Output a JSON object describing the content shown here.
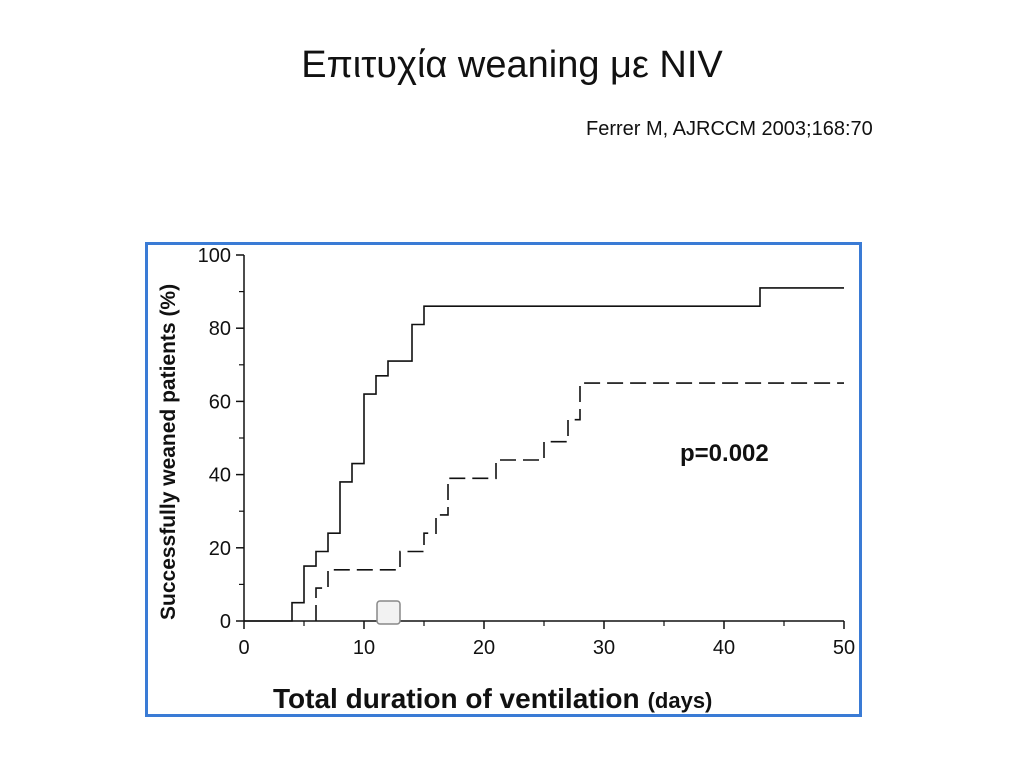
{
  "slide": {
    "title": "Επιτυχία weaning  με NIV",
    "citation": "Ferrer M, AJRCCM 2003;168:70"
  },
  "chart_data": {
    "type": "line",
    "title": "",
    "xlabel": "Total duration of ventilation",
    "xlabel_unit": "(days)",
    "ylabel": "Successfully weaned patients (%)",
    "xlim": [
      0,
      50
    ],
    "ylim": [
      0,
      100
    ],
    "x_ticks": [
      0,
      10,
      20,
      30,
      40,
      50
    ],
    "y_ticks": [
      0,
      20,
      40,
      60,
      80,
      100
    ],
    "grid": false,
    "annotation": "p=0.002",
    "series": [
      {
        "style": "solid",
        "color": "#111111",
        "points": [
          [
            0,
            0
          ],
          [
            4,
            0
          ],
          [
            4,
            5
          ],
          [
            5,
            5
          ],
          [
            5,
            15
          ],
          [
            6,
            15
          ],
          [
            6,
            19
          ],
          [
            7,
            19
          ],
          [
            7,
            24
          ],
          [
            8,
            24
          ],
          [
            8,
            38
          ],
          [
            9,
            38
          ],
          [
            9,
            43
          ],
          [
            10,
            43
          ],
          [
            10,
            62
          ],
          [
            11,
            62
          ],
          [
            11,
            67
          ],
          [
            12,
            67
          ],
          [
            12,
            71
          ],
          [
            14,
            71
          ],
          [
            14,
            81
          ],
          [
            15,
            81
          ],
          [
            15,
            86
          ],
          [
            43,
            86
          ],
          [
            43,
            91
          ],
          [
            50,
            91
          ]
        ]
      },
      {
        "style": "dashed",
        "color": "#111111",
        "points": [
          [
            6,
            0
          ],
          [
            6,
            9
          ],
          [
            7,
            9
          ],
          [
            7,
            14
          ],
          [
            13,
            14
          ],
          [
            13,
            19
          ],
          [
            15,
            19
          ],
          [
            15,
            24
          ],
          [
            16,
            24
          ],
          [
            16,
            29
          ],
          [
            17,
            29
          ],
          [
            17,
            39
          ],
          [
            21,
            39
          ],
          [
            21,
            44
          ],
          [
            25,
            44
          ],
          [
            25,
            49
          ],
          [
            27,
            49
          ],
          [
            27,
            55
          ],
          [
            28,
            55
          ],
          [
            28,
            65
          ],
          [
            50,
            65
          ]
        ]
      }
    ]
  }
}
